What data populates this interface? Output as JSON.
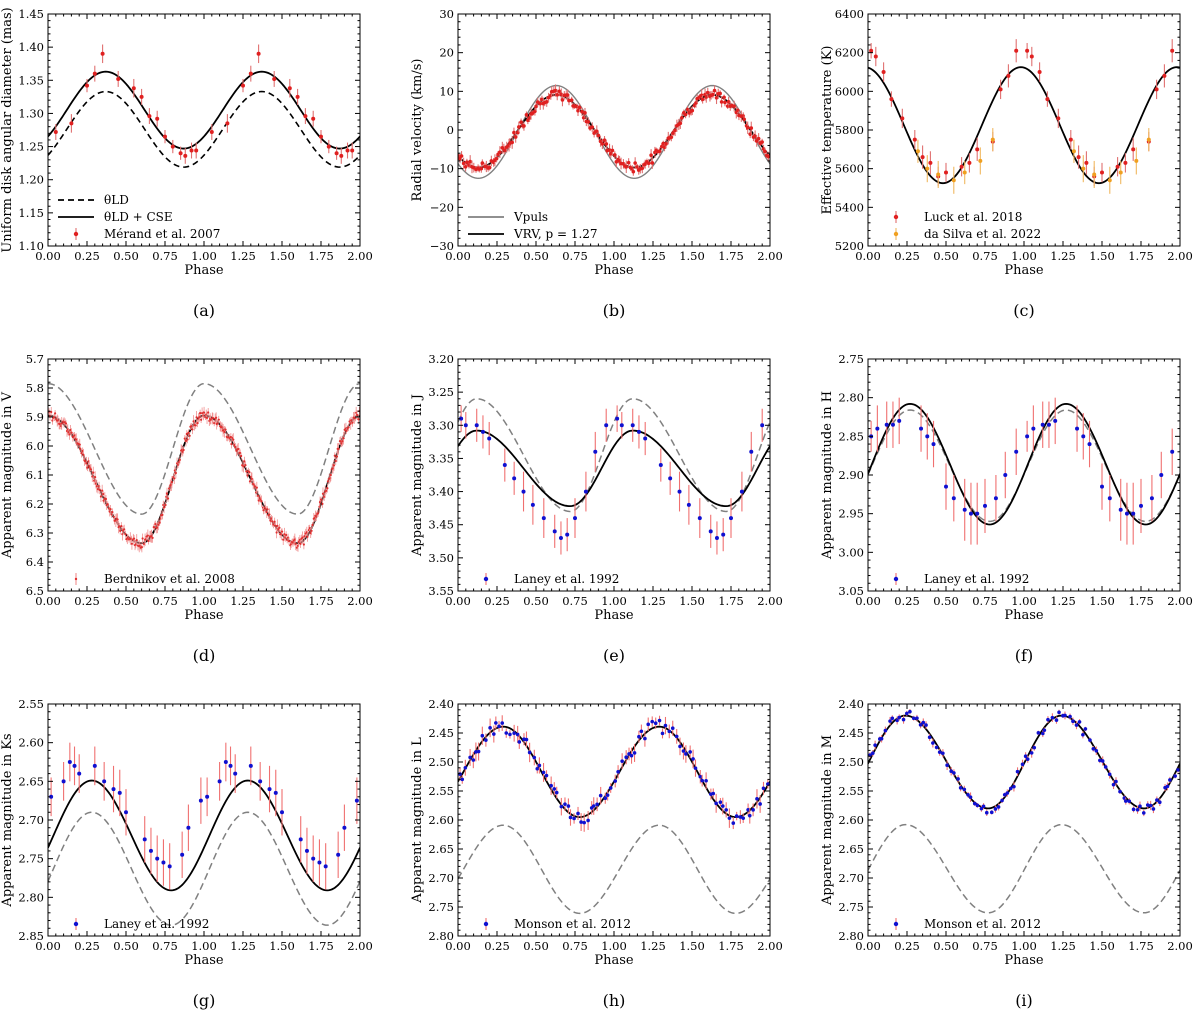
{
  "chart_data": [
    {
      "id": "a",
      "type": "line",
      "caption": "(a)",
      "xlabel": "Phase",
      "ylabel": "Uniform disk angular diameter (mas)",
      "xlim": [
        0,
        2
      ],
      "ylim": [
        1.1,
        1.45
      ],
      "xticks": [
        "0.00",
        "0.25",
        "0.50",
        "0.75",
        "1.00",
        "1.25",
        "1.50",
        "1.75",
        "2.00"
      ],
      "yticks": [
        "1.10",
        "1.15",
        "1.20",
        "1.25",
        "1.30",
        "1.35",
        "1.40",
        "1.45"
      ],
      "legend": {
        "position": "lower-left",
        "entries": [
          {
            "label": "θLD",
            "style": "dashed"
          },
          {
            "label": "θLD + CSE",
            "style": "solid"
          },
          {
            "label": "Mérand et al. 2007",
            "style": "marker-red"
          }
        ]
      },
      "series": [
        {
          "name": "θLD",
          "kind": "sine",
          "mean": 1.276,
          "amp": 0.057,
          "peak": 0.37,
          "color": "#000000",
          "dash": "6,4",
          "width": 1.6
        },
        {
          "name": "θLD + CSE",
          "kind": "sine",
          "mean": 1.305,
          "amp": 0.058,
          "peak": 0.37,
          "color": "#000000",
          "width": 1.8
        },
        {
          "name": "Mérand et al. 2007",
          "kind": "points",
          "color": "#e02020",
          "err": "#e07070",
          "phases": [
            0.05,
            0.15,
            0.25,
            0.3,
            0.35,
            0.45,
            0.55,
            0.6,
            0.65,
            0.7,
            0.75,
            0.8,
            0.85,
            0.88,
            0.92,
            0.95
          ],
          "values": [
            1.272,
            1.285,
            1.342,
            1.36,
            1.39,
            1.352,
            1.338,
            1.325,
            1.296,
            1.292,
            1.265,
            1.25,
            1.24,
            1.236,
            1.244,
            1.244
          ],
          "errors": [
            0.012,
            0.014,
            0.01,
            0.012,
            0.014,
            0.012,
            0.014,
            0.012,
            0.012,
            0.012,
            0.01,
            0.01,
            0.01,
            0.012,
            0.012,
            0.012
          ]
        }
      ]
    },
    {
      "id": "b",
      "type": "line",
      "caption": "(b)",
      "xlabel": "Phase",
      "ylabel": "Radial velocity (km/s)",
      "xlim": [
        0,
        2
      ],
      "ylim": [
        -30,
        30
      ],
      "xticks": [
        "0.00",
        "0.25",
        "0.50",
        "0.75",
        "1.00",
        "1.25",
        "1.50",
        "1.75",
        "2.00"
      ],
      "yticks": [
        "−30",
        "−20",
        "−10",
        "0",
        "10",
        "20",
        "30"
      ],
      "legend": {
        "position": "lower-left",
        "entries": [
          {
            "label": "Vpuls",
            "style": "solid-gray"
          },
          {
            "label": "VRV, p = 1.27",
            "style": "solid"
          }
        ]
      },
      "series": [
        {
          "name": "Vpuls",
          "kind": "sine",
          "mean": -0.5,
          "amp": 12.0,
          "peak": 0.63,
          "color": "#808080",
          "width": 1.4
        },
        {
          "name": "VRV, p = 1.27",
          "kind": "sine",
          "mean": -0.3,
          "amp": 9.4,
          "peak": 0.63,
          "color": "#000000",
          "width": 1.8
        },
        {
          "name": "RV data",
          "kind": "dense",
          "center": "VRV",
          "count": 90,
          "color": "#e02020",
          "err": "#e07070"
        }
      ]
    },
    {
      "id": "c",
      "type": "line",
      "caption": "(c)",
      "xlabel": "Phase",
      "ylabel": "Effective temperature (K)",
      "xlim": [
        0,
        2
      ],
      "ylim": [
        5200,
        6400
      ],
      "xticks": [
        "0.00",
        "0.25",
        "0.50",
        "0.75",
        "1.00",
        "1.25",
        "1.50",
        "1.75",
        "2.00"
      ],
      "yticks": [
        "5200",
        "5400",
        "5600",
        "5800",
        "6000",
        "6200",
        "6400"
      ],
      "legend": {
        "position": "lower-left",
        "entries": [
          {
            "label": "Luck et al. 2018",
            "style": "marker-red"
          },
          {
            "label": "da Silva et al. 2022",
            "style": "marker-orange"
          }
        ]
      },
      "series": [
        {
          "name": "model",
          "kind": "sine",
          "mean": 5825,
          "amp": 300,
          "peak": 0.98,
          "color": "#000000",
          "width": 1.8
        },
        {
          "name": "Luck et al. 2018",
          "kind": "points",
          "color": "#e02020",
          "err": "#e07070",
          "phases": [
            0.02,
            0.05,
            0.1,
            0.15,
            0.22,
            0.3,
            0.35,
            0.4,
            0.45,
            0.5,
            0.6,
            0.65,
            0.7,
            0.8,
            0.85,
            0.9,
            0.95
          ],
          "values": [
            6210,
            6180,
            6100,
            5960,
            5860,
            5750,
            5660,
            5630,
            5560,
            5580,
            5610,
            5630,
            5700,
            5740,
            6010,
            6080,
            6210
          ],
          "errors": [
            40,
            50,
            50,
            40,
            50,
            50,
            60,
            60,
            50,
            50,
            50,
            50,
            60,
            50,
            50,
            60,
            60
          ]
        },
        {
          "name": "da Silva et al. 2022",
          "kind": "points",
          "color": "#f0a020",
          "err": "#f0b860",
          "phases": [
            0.32,
            0.38,
            0.45,
            0.55,
            0.62,
            0.72,
            0.8
          ],
          "values": [
            5690,
            5600,
            5570,
            5540,
            5580,
            5640,
            5750
          ],
          "errors": [
            60,
            70,
            70,
            70,
            60,
            70,
            60
          ]
        }
      ]
    },
    {
      "id": "d",
      "type": "line",
      "caption": "(d)",
      "xlabel": "Phase",
      "ylabel": "Apparent magnitude in V",
      "xlim": [
        0,
        2
      ],
      "ylim": [
        6.5,
        5.7
      ],
      "inverted": true,
      "xticks": [
        "0.00",
        "0.25",
        "0.50",
        "0.75",
        "1.00",
        "1.25",
        "1.50",
        "1.75",
        "2.00"
      ],
      "yticks": [
        "5.7",
        "5.8",
        "5.9",
        "6.0",
        "6.1",
        "6.2",
        "6.3",
        "6.4",
        "6.5"
      ],
      "legend": {
        "position": "lower-left",
        "entries": [
          {
            "label": "Berdnikov et al. 2008",
            "style": "marker-red-small"
          }
        ]
      },
      "series": [
        {
          "name": "dashed",
          "kind": "saw",
          "mean": 6.01,
          "amp": 0.225,
          "peak": 0.0,
          "min": 0.6,
          "color": "#808080",
          "dash": "7,4",
          "width": 1.5
        },
        {
          "name": "model",
          "kind": "saw",
          "mean": 6.115,
          "amp": 0.22,
          "peak": 0.0,
          "min": 0.6,
          "color": "#000000",
          "width": 1.8
        },
        {
          "name": "Berdnikov et al. 2008",
          "kind": "dense",
          "center": "model",
          "count": 160,
          "color": "#e03030",
          "err": "#f09090",
          "small": true
        }
      ]
    },
    {
      "id": "e",
      "type": "line",
      "caption": "(e)",
      "xlabel": "Phase",
      "ylabel": "Apparent magnitude in J",
      "xlim": [
        0,
        2
      ],
      "ylim": [
        3.55,
        3.2
      ],
      "inverted": true,
      "xticks": [
        "0.00",
        "0.25",
        "0.50",
        "0.75",
        "1.00",
        "1.25",
        "1.50",
        "1.75",
        "2.00"
      ],
      "yticks": [
        "3.20",
        "3.25",
        "3.30",
        "3.35",
        "3.40",
        "3.45",
        "3.50",
        "3.55"
      ],
      "legend": {
        "position": "lower-left",
        "entries": [
          {
            "label": "Laney et al. 1992",
            "style": "marker-blue"
          }
        ]
      },
      "series": [
        {
          "name": "dashed",
          "kind": "saw",
          "mean": 3.345,
          "amp": 0.085,
          "peak": 0.12,
          "min": 0.72,
          "color": "#808080",
          "dash": "7,4",
          "width": 1.5
        },
        {
          "name": "model",
          "kind": "saw",
          "mean": 3.365,
          "amp": 0.057,
          "peak": 0.12,
          "min": 0.72,
          "color": "#000000",
          "width": 1.8
        },
        {
          "name": "Laney et al. 1992",
          "kind": "points",
          "color": "#1010d0",
          "err": "#f07070",
          "phases": [
            0.02,
            0.05,
            0.12,
            0.16,
            0.2,
            0.3,
            0.36,
            0.42,
            0.48,
            0.55,
            0.62,
            0.66,
            0.7,
            0.75,
            0.82,
            0.88,
            0.95
          ],
          "values": [
            3.29,
            3.3,
            3.3,
            3.31,
            3.32,
            3.36,
            3.38,
            3.4,
            3.42,
            3.44,
            3.46,
            3.47,
            3.465,
            3.44,
            3.4,
            3.34,
            3.3
          ],
          "errors": [
            0.02,
            0.02,
            0.025,
            0.025,
            0.025,
            0.025,
            0.025,
            0.03,
            0.03,
            0.03,
            0.025,
            0.025,
            0.025,
            0.03,
            0.03,
            0.03,
            0.025
          ]
        }
      ]
    },
    {
      "id": "f",
      "type": "line",
      "caption": "(f)",
      "xlabel": "Phase",
      "ylabel": "Apparent magnitude in H",
      "xlim": [
        0,
        2
      ],
      "ylim": [
        3.05,
        2.75
      ],
      "inverted": true,
      "xticks": [
        "0.00",
        "0.25",
        "0.50",
        "0.75",
        "1.00",
        "1.25",
        "1.50",
        "1.75",
        "2.00"
      ],
      "yticks": [
        "2.75",
        "2.80",
        "2.85",
        "2.90",
        "2.95",
        "3.00",
        "3.05"
      ],
      "legend": {
        "position": "lower-left",
        "entries": [
          {
            "label": "Laney et al. 1992",
            "style": "marker-blue"
          }
        ]
      },
      "series": [
        {
          "name": "dashed",
          "kind": "saw",
          "mean": 2.888,
          "amp": 0.072,
          "peak": 0.27,
          "min": 0.78,
          "color": "#808080",
          "dash": "7,4",
          "width": 1.5
        },
        {
          "name": "model",
          "kind": "saw",
          "mean": 2.886,
          "amp": 0.078,
          "peak": 0.27,
          "min": 0.78,
          "color": "#000000",
          "width": 1.8
        },
        {
          "name": "Laney et al. 1992",
          "kind": "points",
          "color": "#1010d0",
          "err": "#f07070",
          "phases": [
            0.02,
            0.06,
            0.12,
            0.16,
            0.2,
            0.34,
            0.38,
            0.42,
            0.5,
            0.55,
            0.62,
            0.66,
            0.7,
            0.75,
            0.82,
            0.88,
            0.95
          ],
          "values": [
            2.85,
            2.84,
            2.835,
            2.835,
            2.83,
            2.84,
            2.85,
            2.86,
            2.915,
            2.93,
            2.945,
            2.95,
            2.95,
            2.94,
            2.93,
            2.9,
            2.87
          ],
          "errors": [
            0.02,
            0.03,
            0.03,
            0.03,
            0.03,
            0.03,
            0.03,
            0.03,
            0.03,
            0.03,
            0.04,
            0.04,
            0.04,
            0.035,
            0.03,
            0.03,
            0.03
          ]
        }
      ]
    },
    {
      "id": "g",
      "type": "line",
      "caption": "(g)",
      "xlabel": "Phase",
      "ylabel": "Apparent magnitude in Ks",
      "xlim": [
        0,
        2
      ],
      "ylim": [
        2.85,
        2.55
      ],
      "inverted": true,
      "xticks": [
        "0.00",
        "0.25",
        "0.50",
        "0.75",
        "1.00",
        "1.25",
        "1.50",
        "1.75",
        "2.00"
      ],
      "yticks": [
        "2.55",
        "2.60",
        "2.65",
        "2.70",
        "2.75",
        "2.80",
        "2.85"
      ],
      "legend": {
        "position": "lower-left",
        "entries": [
          {
            "label": "Laney et al. 1992",
            "style": "marker-blue"
          }
        ]
      },
      "series": [
        {
          "name": "dashed",
          "kind": "saw",
          "mean": 2.763,
          "amp": 0.073,
          "peak": 0.28,
          "min": 0.79,
          "color": "#808080",
          "dash": "7,4",
          "width": 1.5
        },
        {
          "name": "model",
          "kind": "saw",
          "mean": 2.72,
          "amp": 0.071,
          "peak": 0.28,
          "min": 0.79,
          "color": "#000000",
          "width": 1.8
        },
        {
          "name": "Laney et al. 1992",
          "kind": "points",
          "color": "#1010d0",
          "err": "#f07070",
          "phases": [
            0.02,
            0.1,
            0.14,
            0.17,
            0.2,
            0.3,
            0.36,
            0.42,
            0.46,
            0.5,
            0.62,
            0.66,
            0.7,
            0.74,
            0.78,
            0.86,
            0.9,
            0.98
          ],
          "values": [
            2.67,
            2.65,
            2.625,
            2.63,
            2.64,
            2.63,
            2.65,
            2.66,
            2.665,
            2.69,
            2.725,
            2.74,
            2.75,
            2.755,
            2.76,
            2.745,
            2.71,
            2.675
          ],
          "errors": [
            0.025,
            0.025,
            0.025,
            0.025,
            0.025,
            0.025,
            0.025,
            0.03,
            0.03,
            0.03,
            0.03,
            0.03,
            0.03,
            0.03,
            0.03,
            0.03,
            0.03,
            0.03
          ]
        }
      ]
    },
    {
      "id": "h",
      "type": "line",
      "caption": "(h)",
      "xlabel": "Phase",
      "ylabel": "Apparent magnitude in L",
      "xlim": [
        0,
        2
      ],
      "ylim": [
        2.8,
        2.4
      ],
      "inverted": true,
      "xticks": [
        "0.00",
        "0.25",
        "0.50",
        "0.75",
        "1.00",
        "1.25",
        "1.50",
        "1.75",
        "2.00"
      ],
      "yticks": [
        "2.40",
        "2.45",
        "2.50",
        "2.55",
        "2.60",
        "2.65",
        "2.70",
        "2.75",
        "2.80"
      ],
      "legend": {
        "position": "lower-left",
        "entries": [
          {
            "label": "Monson et al. 2012",
            "style": "marker-blue"
          }
        ]
      },
      "series": [
        {
          "name": "dashed",
          "kind": "saw",
          "mean": 2.685,
          "amp": 0.076,
          "peak": 0.29,
          "min": 0.78,
          "color": "#808080",
          "dash": "7,4",
          "width": 1.5
        },
        {
          "name": "model",
          "kind": "saw",
          "mean": 2.517,
          "amp": 0.078,
          "peak": 0.29,
          "min": 0.78,
          "color": "#000000",
          "width": 1.8
        },
        {
          "name": "Monson et al. 2012",
          "kind": "dense",
          "center": "model",
          "count": 46,
          "color": "#1010d0",
          "err": "#f07070",
          "jitter": 0.012,
          "errsize": 0.012
        }
      ]
    },
    {
      "id": "i",
      "type": "line",
      "caption": "(i)",
      "xlabel": "Phase",
      "ylabel": "Apparent magnitude in M",
      "xlim": [
        0,
        2
      ],
      "ylim": [
        2.8,
        2.4
      ],
      "inverted": true,
      "xticks": [
        "0.00",
        "0.25",
        "0.50",
        "0.75",
        "1.00",
        "1.25",
        "1.50",
        "1.75",
        "2.00"
      ],
      "yticks": [
        "2.40",
        "2.45",
        "2.50",
        "2.55",
        "2.60",
        "2.65",
        "2.70",
        "2.75",
        "2.80"
      ],
      "legend": {
        "position": "lower-left",
        "entries": [
          {
            "label": "Monson et al. 2012",
            "style": "marker-blue"
          }
        ]
      },
      "series": [
        {
          "name": "dashed",
          "kind": "saw",
          "mean": 2.684,
          "amp": 0.076,
          "peak": 0.24,
          "min": 0.77,
          "color": "#808080",
          "dash": "7,4",
          "width": 1.5
        },
        {
          "name": "model",
          "kind": "saw",
          "mean": 2.5,
          "amp": 0.08,
          "peak": 0.24,
          "min": 0.77,
          "color": "#000000",
          "width": 1.8
        },
        {
          "name": "Monson et al. 2012",
          "kind": "dense",
          "center": "model",
          "count": 46,
          "color": "#1010d0",
          "err": "#f07070",
          "jitter": 0.008,
          "errsize": 0.006
        }
      ]
    }
  ]
}
